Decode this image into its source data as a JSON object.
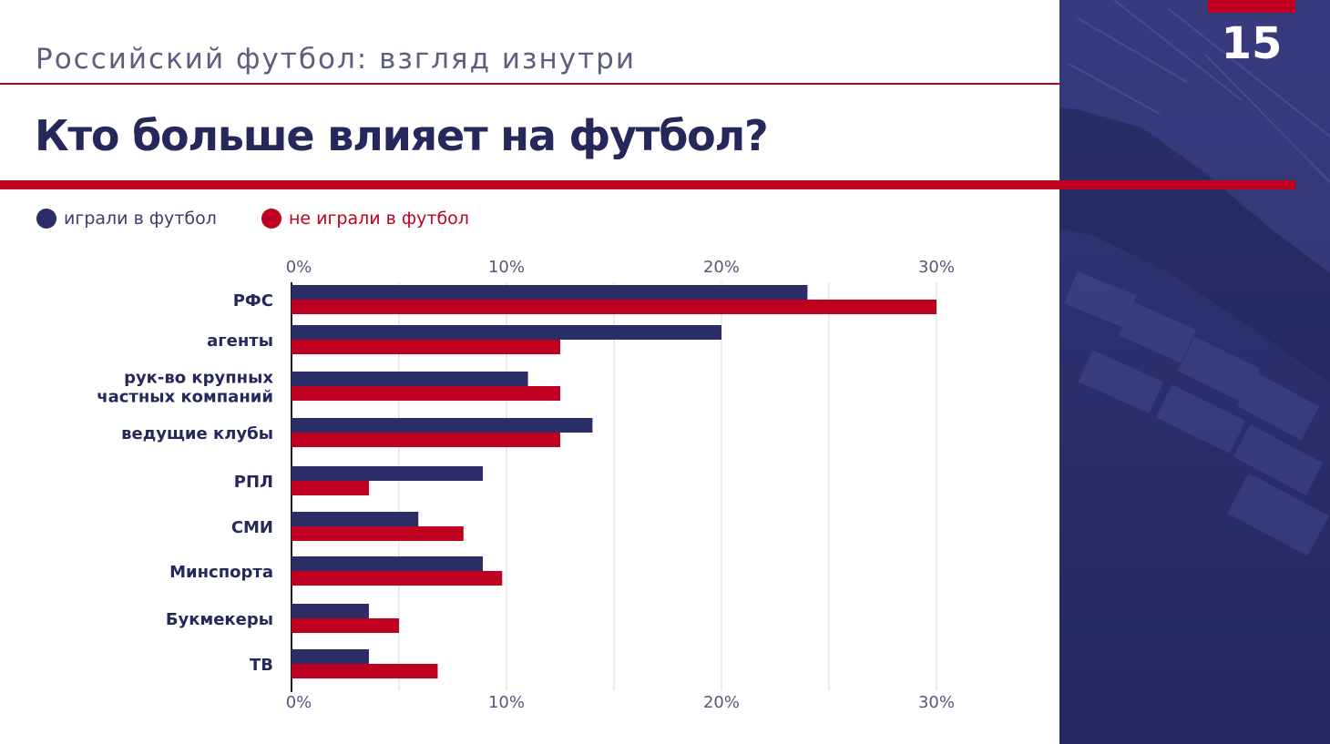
{
  "header": {
    "subtitle": "Российский футбол: взгляд изнутри",
    "title": "Кто больше влияет на футбол?",
    "page_number": "15"
  },
  "colors": {
    "played": "#2a2d66",
    "not_played": "#c00020",
    "accent_red": "#c00020",
    "title_navy": "#25285a",
    "grid": "#d8d8d8",
    "label": "#25285a",
    "tick": "#55597a"
  },
  "legend": [
    {
      "label": "играли в футбол",
      "color": "#2a2d66",
      "text_color": "#3a3d6e"
    },
    {
      "label": "не играли в футбол",
      "color": "#c00020",
      "text_color": "#c00020"
    }
  ],
  "side_panel": {
    "background": "#2a2d66"
  },
  "chart_data": {
    "type": "bar",
    "orientation": "horizontal",
    "categories": [
      "РФС",
      "агенты",
      "рук-во крупных\nчастных компаний",
      "ведущие клубы",
      "РПЛ",
      "СМИ",
      "Минспорта",
      "Букмекеры",
      "ТВ"
    ],
    "series": [
      {
        "name": "играли в футбол",
        "color": "#2a2d66",
        "values": [
          24,
          20,
          11,
          14,
          8.9,
          5.9,
          8.9,
          3.6,
          3.6
        ]
      },
      {
        "name": "не играли в футбол",
        "color": "#c00020",
        "values": [
          30,
          12.5,
          12.5,
          12.5,
          3.6,
          8,
          9.8,
          5,
          6.8
        ]
      }
    ],
    "xlim": [
      0,
      30
    ],
    "xticks": [
      0,
      10,
      20,
      30
    ],
    "xtick_labels": [
      "0%",
      "10%",
      "20%",
      "30%"
    ],
    "axis_positions": [
      "top",
      "bottom"
    ],
    "grid": true,
    "grid_values": [
      5,
      10,
      15,
      20,
      25,
      30
    ],
    "legend_position": "top-left",
    "title": "Кто больше влияет на футбол?"
  }
}
